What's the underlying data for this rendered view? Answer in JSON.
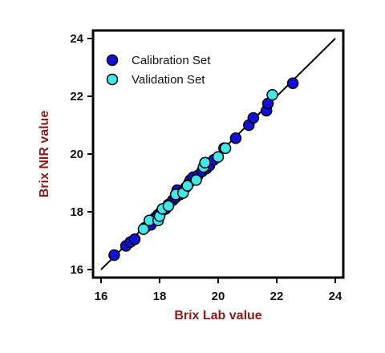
{
  "chart_data": {
    "type": "scatter",
    "xlabel": "Brix Lab value",
    "ylabel": "Brix NIR value",
    "xlim": [
      16,
      24
    ],
    "ylim": [
      16,
      24
    ],
    "xticks": [
      "16",
      "18",
      "20",
      "22",
      "24"
    ],
    "yticks": [
      "16",
      "18",
      "20",
      "22",
      "24"
    ],
    "grid": false,
    "legend_position": "top-left",
    "axis_title_color": "#8b1a1a",
    "reference_line": {
      "x": [
        16,
        24
      ],
      "y": [
        16,
        24
      ],
      "color": "#000000"
    },
    "series": [
      {
        "name": "Calibration Set",
        "color": "#1010d8",
        "points": [
          [
            16.45,
            16.5
          ],
          [
            16.85,
            16.82
          ],
          [
            17.0,
            16.95
          ],
          [
            17.15,
            17.05
          ],
          [
            17.5,
            17.45
          ],
          [
            17.7,
            17.55
          ],
          [
            17.85,
            17.8
          ],
          [
            17.95,
            17.9
          ],
          [
            18.05,
            18.0
          ],
          [
            18.2,
            18.1
          ],
          [
            18.3,
            18.25
          ],
          [
            18.45,
            18.4
          ],
          [
            18.55,
            18.5
          ],
          [
            18.6,
            18.75
          ],
          [
            18.7,
            18.6
          ],
          [
            18.8,
            18.7
          ],
          [
            18.9,
            18.85
          ],
          [
            19.0,
            19.0
          ],
          [
            19.05,
            19.1
          ],
          [
            19.15,
            19.2
          ],
          [
            19.3,
            19.25
          ],
          [
            19.45,
            19.4
          ],
          [
            19.6,
            19.5
          ],
          [
            19.7,
            19.6
          ],
          [
            19.85,
            19.8
          ],
          [
            20.2,
            20.2
          ],
          [
            20.6,
            20.55
          ],
          [
            21.05,
            21.0
          ],
          [
            21.2,
            21.25
          ],
          [
            21.65,
            21.5
          ],
          [
            21.7,
            21.75
          ],
          [
            22.55,
            22.45
          ]
        ]
      },
      {
        "name": "Validation Set",
        "color": "#40e8e8",
        "points": [
          [
            17.45,
            17.4
          ],
          [
            17.65,
            17.7
          ],
          [
            17.95,
            17.7
          ],
          [
            18.0,
            17.85
          ],
          [
            18.1,
            18.1
          ],
          [
            18.3,
            18.2
          ],
          [
            18.55,
            18.6
          ],
          [
            18.8,
            18.65
          ],
          [
            18.95,
            18.9
          ],
          [
            19.25,
            19.1
          ],
          [
            19.5,
            19.55
          ],
          [
            19.55,
            19.7
          ],
          [
            20.0,
            19.9
          ],
          [
            20.25,
            20.2
          ],
          [
            21.85,
            22.05
          ]
        ]
      }
    ]
  }
}
